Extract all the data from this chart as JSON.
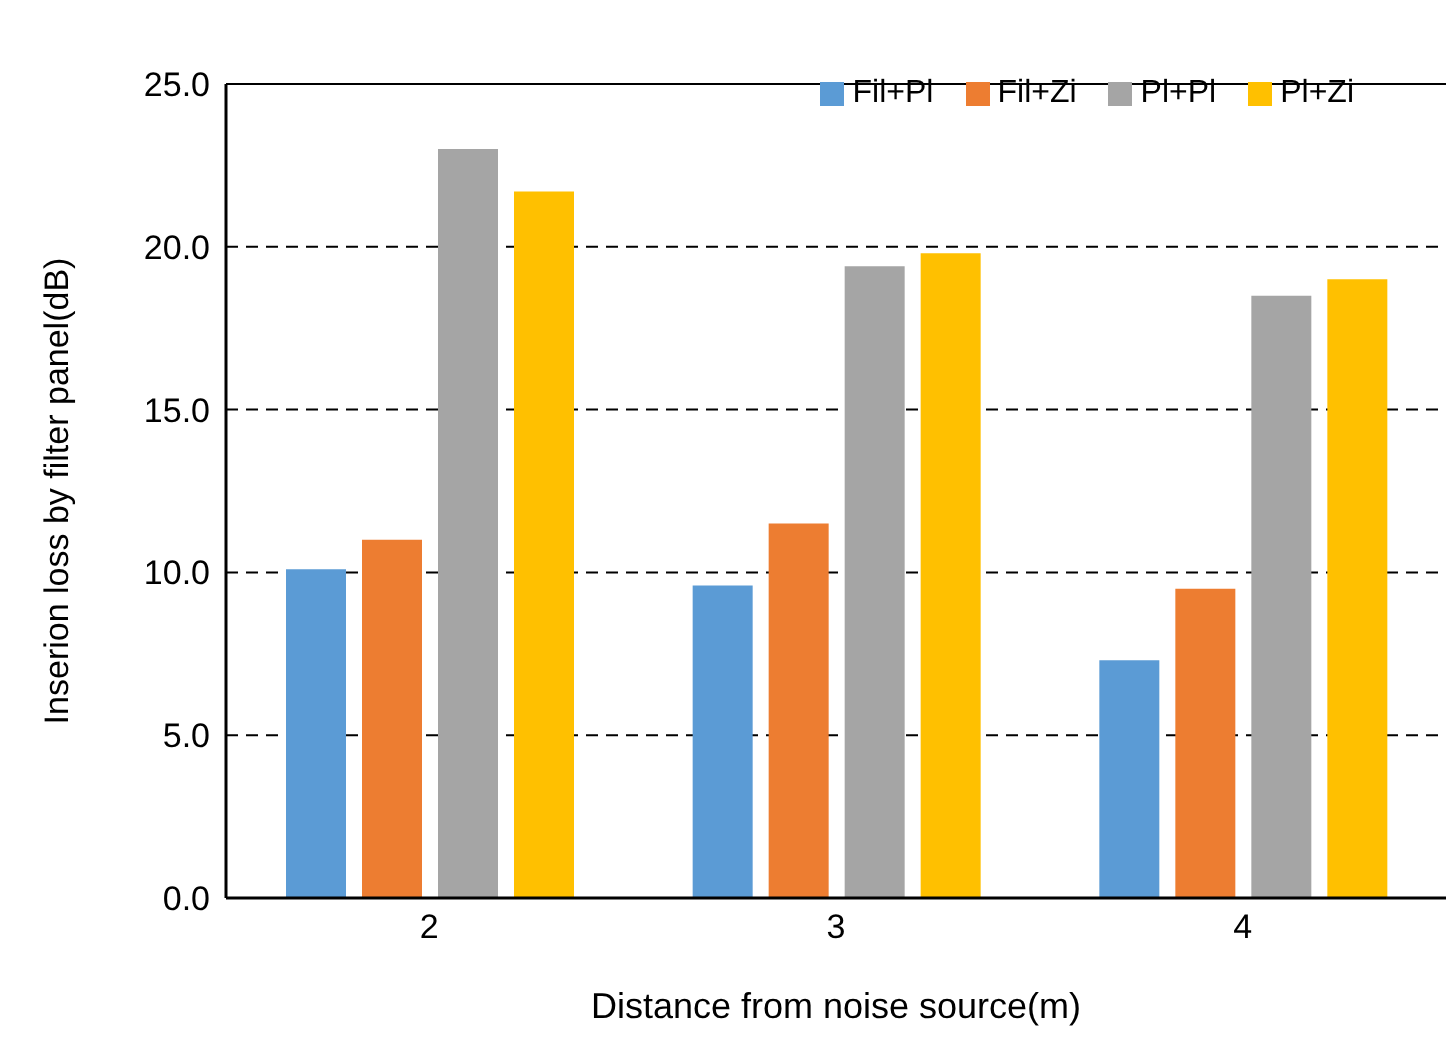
{
  "chart_data": {
    "type": "bar",
    "xlabel": "Distance from noise source(m)",
    "ylabel": "Inserion loss by filter panel(dB)",
    "categories": [
      "2",
      "3",
      "4"
    ],
    "series": [
      {
        "name": "Fil+Pl",
        "color": "#5b9bd5",
        "values": [
          10.1,
          9.6,
          7.3
        ]
      },
      {
        "name": "Fil+Zi",
        "color": "#ed7d31",
        "values": [
          11.0,
          11.5,
          9.5
        ]
      },
      {
        "name": "Pl+Pl",
        "color": "#a5a5a5",
        "values": [
          23.0,
          19.4,
          18.5
        ]
      },
      {
        "name": "Pl+Zi",
        "color": "#ffc000",
        "values": [
          21.7,
          19.8,
          19.0
        ]
      }
    ],
    "ylim": [
      0,
      25
    ],
    "yticks": [
      {
        "value": 0,
        "label": "0.0"
      },
      {
        "value": 5,
        "label": "5.0"
      },
      {
        "value": 10,
        "label": "10.0"
      },
      {
        "value": 15,
        "label": "15.0"
      },
      {
        "value": 20,
        "label": "20.0"
      },
      {
        "value": 25,
        "label": "25.0"
      }
    ],
    "grid": "y",
    "legend": "top right"
  }
}
